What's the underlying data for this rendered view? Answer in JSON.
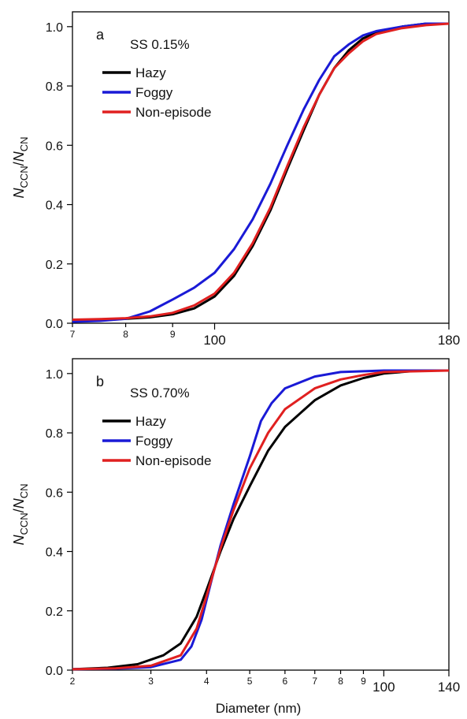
{
  "figure": {
    "xlabel": "Diameter (nm)"
  },
  "chart_data": [
    {
      "type": "line",
      "panel_label": "a",
      "legend_title": "SS 0.15%",
      "legend_position": "top-left",
      "ylabel_main": "N",
      "ylabel_sub1": "CCN",
      "ylabel_sep": "/",
      "ylabel_sub2": "CN",
      "xscale": "log",
      "xlim": [
        70,
        180
      ],
      "ylim": [
        0,
        1.05
      ],
      "x_ticks": [
        70,
        80,
        90,
        100,
        180
      ],
      "x_tick_labels": [
        "7",
        "8",
        "9",
        "100",
        "180"
      ],
      "y_ticks": [
        0,
        0.2,
        0.4,
        0.6,
        0.8,
        1.0
      ],
      "y_tick_labels": [
        "0.0",
        "0.2",
        "0.4",
        "0.6",
        "0.8",
        "1.0"
      ],
      "grid": false,
      "series": [
        {
          "name": "Hazy",
          "color": "#000000",
          "points": [
            [
              70,
              0.01
            ],
            [
              75,
              0.012
            ],
            [
              80,
              0.015
            ],
            [
              85,
              0.02
            ],
            [
              90,
              0.03
            ],
            [
              95,
              0.05
            ],
            [
              100,
              0.09
            ],
            [
              105,
              0.16
            ],
            [
              110,
              0.26
            ],
            [
              115,
              0.38
            ],
            [
              120,
              0.52
            ],
            [
              125,
              0.65
            ],
            [
              130,
              0.77
            ],
            [
              135,
              0.86
            ],
            [
              140,
              0.92
            ],
            [
              145,
              0.96
            ],
            [
              150,
              0.98
            ],
            [
              160,
              1.0
            ],
            [
              170,
              1.01
            ],
            [
              180,
              1.01
            ]
          ]
        },
        {
          "name": "Foggy",
          "color": "#1a1ad6",
          "points": [
            [
              70,
              0.005
            ],
            [
              75,
              0.008
            ],
            [
              80,
              0.015
            ],
            [
              85,
              0.04
            ],
            [
              90,
              0.08
            ],
            [
              95,
              0.12
            ],
            [
              100,
              0.17
            ],
            [
              105,
              0.25
            ],
            [
              110,
              0.35
            ],
            [
              115,
              0.47
            ],
            [
              120,
              0.6
            ],
            [
              125,
              0.72
            ],
            [
              130,
              0.82
            ],
            [
              135,
              0.9
            ],
            [
              140,
              0.94
            ],
            [
              145,
              0.97
            ],
            [
              150,
              0.985
            ],
            [
              160,
              1.0
            ],
            [
              170,
              1.01
            ],
            [
              180,
              1.01
            ]
          ]
        },
        {
          "name": "Non-episode",
          "color": "#e02020",
          "points": [
            [
              70,
              0.012
            ],
            [
              75,
              0.014
            ],
            [
              80,
              0.017
            ],
            [
              85,
              0.023
            ],
            [
              90,
              0.035
            ],
            [
              95,
              0.06
            ],
            [
              100,
              0.1
            ],
            [
              105,
              0.17
            ],
            [
              110,
              0.27
            ],
            [
              115,
              0.39
            ],
            [
              120,
              0.53
            ],
            [
              125,
              0.66
            ],
            [
              130,
              0.77
            ],
            [
              135,
              0.86
            ],
            [
              140,
              0.91
            ],
            [
              145,
              0.95
            ],
            [
              150,
              0.975
            ],
            [
              160,
              0.995
            ],
            [
              170,
              1.005
            ],
            [
              180,
              1.01
            ]
          ]
        }
      ]
    },
    {
      "type": "line",
      "panel_label": "b",
      "legend_title": "SS 0.70%",
      "legend_position": "top-left",
      "ylabel_main": "N",
      "ylabel_sub1": "CCN",
      "ylabel_sep": "/",
      "ylabel_sub2": "CN",
      "xlabel": "Diameter (nm)",
      "xscale": "log",
      "xlim": [
        20,
        140
      ],
      "ylim": [
        0,
        1.05
      ],
      "x_ticks": [
        20,
        30,
        40,
        50,
        60,
        70,
        80,
        90,
        100,
        140
      ],
      "x_tick_labels": [
        "2",
        "3",
        "4",
        "5",
        "6",
        "7",
        "8",
        "9",
        "100",
        "140"
      ],
      "y_ticks": [
        0,
        0.2,
        0.4,
        0.6,
        0.8,
        1.0
      ],
      "y_tick_labels": [
        "0.0",
        "0.2",
        "0.4",
        "0.6",
        "0.8",
        "1.0"
      ],
      "grid": false,
      "series": [
        {
          "name": "Hazy",
          "color": "#000000",
          "points": [
            [
              20,
              0.003
            ],
            [
              24,
              0.008
            ],
            [
              28,
              0.02
            ],
            [
              32,
              0.05
            ],
            [
              35,
              0.09
            ],
            [
              38,
              0.18
            ],
            [
              40,
              0.27
            ],
            [
              43,
              0.4
            ],
            [
              46,
              0.51
            ],
            [
              50,
              0.62
            ],
            [
              55,
              0.74
            ],
            [
              60,
              0.82
            ],
            [
              70,
              0.91
            ],
            [
              80,
              0.96
            ],
            [
              90,
              0.985
            ],
            [
              100,
              1.0
            ],
            [
              120,
              1.01
            ],
            [
              140,
              1.01
            ]
          ]
        },
        {
          "name": "Foggy",
          "color": "#1a1ad6",
          "points": [
            [
              20,
              0.003
            ],
            [
              25,
              0.005
            ],
            [
              30,
              0.01
            ],
            [
              35,
              0.035
            ],
            [
              37,
              0.08
            ],
            [
              39,
              0.17
            ],
            [
              41,
              0.3
            ],
            [
              43,
              0.42
            ],
            [
              46,
              0.56
            ],
            [
              50,
              0.72
            ],
            [
              53,
              0.84
            ],
            [
              56,
              0.9
            ],
            [
              60,
              0.95
            ],
            [
              70,
              0.99
            ],
            [
              80,
              1.005
            ],
            [
              100,
              1.01
            ],
            [
              140,
              1.01
            ]
          ]
        },
        {
          "name": "Non-episode",
          "color": "#e02020",
          "points": [
            [
              20,
              0.003
            ],
            [
              25,
              0.006
            ],
            [
              30,
              0.015
            ],
            [
              35,
              0.05
            ],
            [
              38,
              0.14
            ],
            [
              40,
              0.25
            ],
            [
              43,
              0.41
            ],
            [
              46,
              0.54
            ],
            [
              50,
              0.68
            ],
            [
              55,
              0.8
            ],
            [
              60,
              0.88
            ],
            [
              70,
              0.95
            ],
            [
              80,
              0.98
            ],
            [
              90,
              0.995
            ],
            [
              100,
              1.005
            ],
            [
              140,
              1.01
            ]
          ]
        }
      ]
    }
  ]
}
